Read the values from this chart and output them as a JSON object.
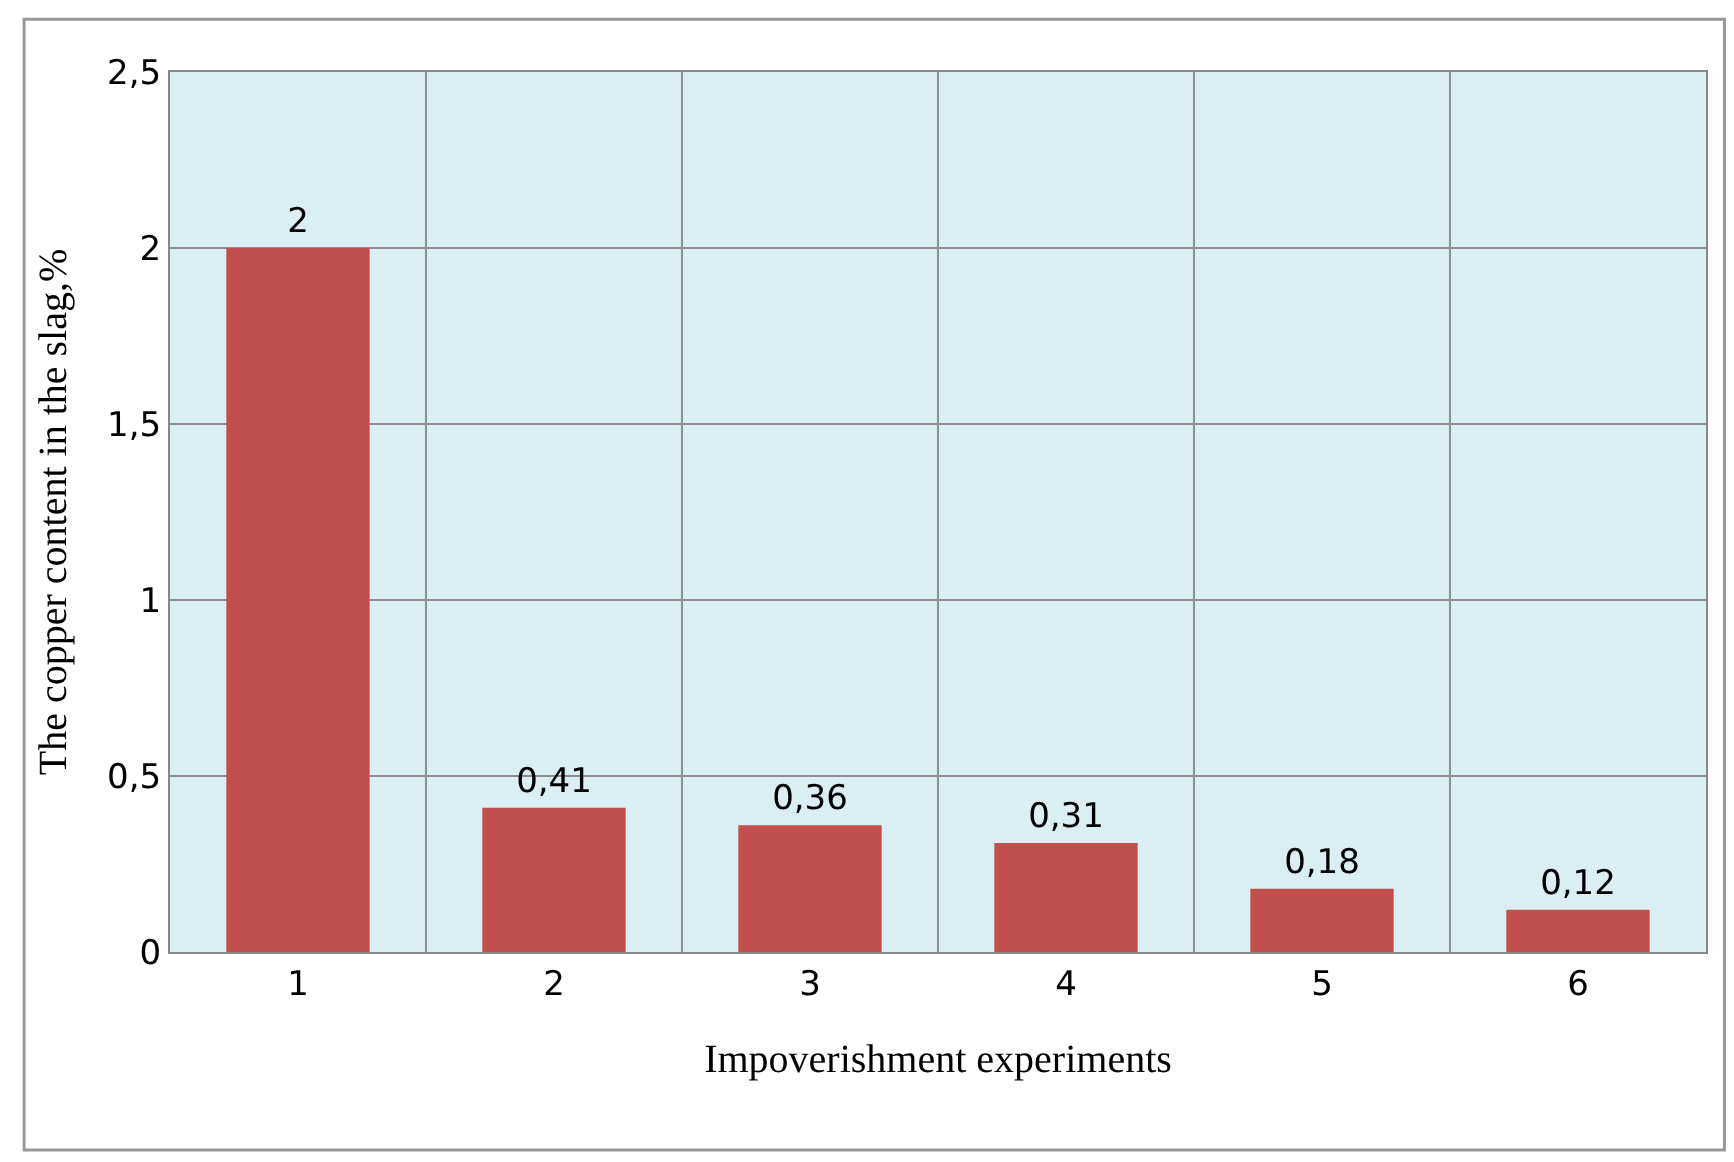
{
  "chart_data": {
    "type": "bar",
    "xlabel": "Impoverishment experiments",
    "ylabel": "The copper content in the slag,%",
    "categories": [
      "1",
      "2",
      "3",
      "4",
      "5",
      "6"
    ],
    "values": [
      2,
      0.41,
      0.36,
      0.31,
      0.18,
      0.12
    ],
    "value_labels": [
      "2",
      "0,41",
      "0,36",
      "0,31",
      "0,18",
      "0,12"
    ],
    "color": "#c0504d",
    "ylim": [
      0,
      2.5
    ],
    "yticks": [
      0,
      {
        "value": 0.5,
        "label": "0,5"
      },
      1,
      {
        "value": 1.5,
        "label": "1,5"
      },
      2,
      {
        "value": 2.5,
        "label": "2,5"
      }
    ],
    "grid": true,
    "legend": false
  }
}
